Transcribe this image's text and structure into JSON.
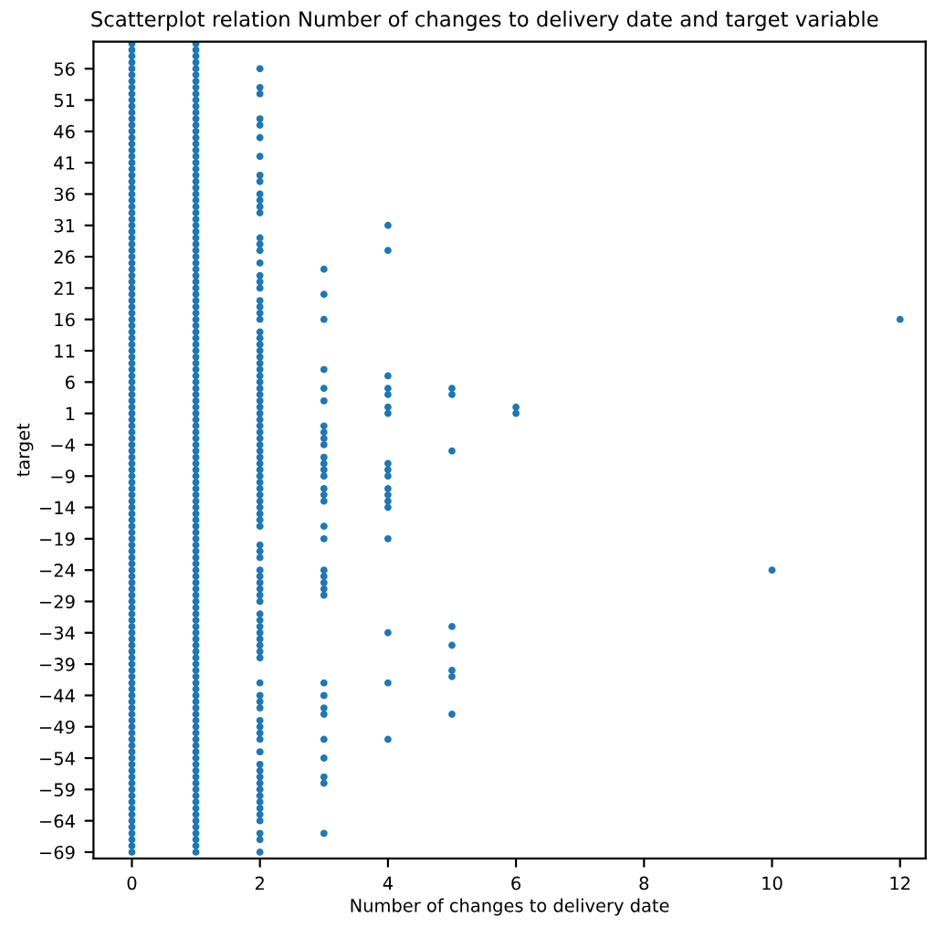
{
  "chart_data": {
    "type": "scatter",
    "title": "Scatterplot relation Number of changes to delivery date and target variable",
    "xlabel": "Number of changes to delivery date",
    "ylabel": "target",
    "xlim": [
      -0.6,
      12.4
    ],
    "ylim": [
      -70,
      60.3
    ],
    "xticks": [
      0,
      2,
      4,
      6,
      8,
      10,
      12
    ],
    "yticks": [
      -69,
      -64,
      -59,
      -54,
      -49,
      -44,
      -39,
      -34,
      -29,
      -24,
      -19,
      -14,
      -9,
      -4,
      1,
      6,
      11,
      16,
      21,
      26,
      31,
      36,
      41,
      46,
      51,
      56
    ],
    "grid": false,
    "legend": false,
    "marker": "circle",
    "series": [
      {
        "color": "#1f77b4",
        "x": [
          0,
          0,
          0,
          0,
          0,
          0,
          0,
          0,
          0,
          0,
          0,
          0,
          0,
          0,
          0,
          0,
          0,
          0,
          0,
          0,
          0,
          0,
          0,
          0,
          0,
          0,
          0,
          0,
          0,
          0,
          0,
          0,
          0,
          0,
          0,
          0,
          0,
          0,
          0,
          0,
          0,
          0,
          0,
          0,
          0,
          0,
          0,
          0,
          0,
          0,
          0,
          0,
          0,
          0,
          0,
          0,
          0,
          0,
          0,
          0,
          0,
          0,
          0,
          0,
          0,
          0,
          0,
          0,
          0,
          0,
          0,
          0,
          0,
          0,
          0,
          0,
          0,
          0,
          0,
          0,
          0,
          0,
          0,
          0,
          0,
          0,
          0,
          0,
          0,
          0,
          0,
          0,
          0,
          0,
          0,
          0,
          0,
          0,
          0,
          0,
          0,
          0,
          0,
          0,
          0,
          0,
          0,
          0,
          0,
          0,
          0,
          0,
          0,
          0,
          0,
          0,
          0,
          0,
          0,
          0,
          0,
          0,
          0,
          0,
          0,
          0,
          0,
          0,
          0,
          0
        ],
        "values": [
          -69,
          -68,
          -67,
          -66,
          -65,
          -64,
          -63,
          -62,
          -61,
          -60,
          -59,
          -58,
          -57,
          -56,
          -55,
          -54,
          -53,
          -52,
          -51,
          -50,
          -49,
          -48,
          -47,
          -46,
          -45,
          -44,
          -43,
          -42,
          -41,
          -40,
          -39,
          -38,
          -37,
          -36,
          -35,
          -34,
          -33,
          -32,
          -31,
          -30,
          -29,
          -28,
          -27,
          -26,
          -25,
          -24,
          -23,
          -22,
          -21,
          -20,
          -19,
          -18,
          -17,
          -16,
          -15,
          -14,
          -13,
          -12,
          -11,
          -10,
          -9,
          -8,
          -7,
          -6,
          -5,
          -4,
          -3,
          -2,
          -1,
          0,
          1,
          2,
          3,
          4,
          5,
          6,
          7,
          8,
          9,
          10,
          11,
          12,
          13,
          14,
          15,
          16,
          17,
          18,
          19,
          20,
          21,
          22,
          23,
          24,
          25,
          26,
          27,
          28,
          29,
          30,
          31,
          32,
          33,
          34,
          35,
          36,
          37,
          38,
          39,
          40,
          41,
          42,
          43,
          44,
          45,
          46,
          47,
          48,
          49,
          50,
          51,
          52,
          53,
          54,
          55,
          56,
          57,
          58,
          59,
          60
        ]
      },
      {
        "color": "#1f77b4",
        "x": [
          1,
          1,
          1,
          1,
          1,
          1,
          1,
          1,
          1,
          1,
          1,
          1,
          1,
          1,
          1,
          1,
          1,
          1,
          1,
          1,
          1,
          1,
          1,
          1,
          1,
          1,
          1,
          1,
          1,
          1,
          1,
          1,
          1,
          1,
          1,
          1,
          1,
          1,
          1,
          1,
          1,
          1,
          1,
          1,
          1,
          1,
          1,
          1,
          1,
          1,
          1,
          1,
          1,
          1,
          1,
          1,
          1,
          1,
          1,
          1,
          1,
          1,
          1,
          1,
          1,
          1,
          1,
          1,
          1,
          1,
          1,
          1,
          1,
          1,
          1,
          1,
          1,
          1,
          1,
          1,
          1,
          1,
          1,
          1,
          1,
          1,
          1,
          1,
          1,
          1,
          1,
          1,
          1,
          1,
          1,
          1,
          1,
          1,
          1,
          1,
          1,
          1,
          1,
          1,
          1,
          1,
          1,
          1,
          1,
          1,
          1,
          1,
          1,
          1,
          1,
          1,
          1,
          1,
          1,
          1,
          1,
          1,
          1,
          1,
          1,
          1,
          1,
          1,
          1,
          1
        ],
        "values": [
          -69,
          -68,
          -67,
          -66,
          -65,
          -64,
          -63,
          -62,
          -61,
          -60,
          -59,
          -58,
          -57,
          -56,
          -55,
          -54,
          -53,
          -52,
          -51,
          -50,
          -49,
          -48,
          -47,
          -46,
          -45,
          -44,
          -43,
          -42,
          -41,
          -40,
          -39,
          -38,
          -37,
          -36,
          -35,
          -34,
          -33,
          -32,
          -31,
          -30,
          -29,
          -28,
          -27,
          -26,
          -25,
          -24,
          -23,
          -22,
          -21,
          -20,
          -19,
          -18,
          -17,
          -16,
          -15,
          -14,
          -13,
          -12,
          -11,
          -10,
          -9,
          -8,
          -7,
          -6,
          -5,
          -4,
          -3,
          -2,
          -1,
          0,
          1,
          2,
          3,
          4,
          5,
          6,
          7,
          8,
          9,
          10,
          11,
          12,
          13,
          14,
          15,
          16,
          17,
          18,
          19,
          20,
          21,
          22,
          23,
          24,
          25,
          26,
          27,
          28,
          29,
          30,
          31,
          32,
          33,
          34,
          35,
          36,
          37,
          38,
          39,
          40,
          41,
          42,
          43,
          44,
          45,
          46,
          47,
          48,
          49,
          50,
          51,
          52,
          53,
          54,
          55,
          56,
          57,
          58,
          59,
          60
        ]
      },
      {
        "color": "#1f77b4",
        "x": [
          2,
          2,
          2,
          2,
          2,
          2,
          2,
          2,
          2,
          2,
          2,
          2,
          2,
          2,
          2,
          2,
          2,
          2,
          2,
          2,
          2,
          2,
          2,
          2,
          2,
          2,
          2,
          2,
          2,
          2,
          2,
          2,
          2,
          2,
          2,
          2,
          2,
          2,
          2,
          2,
          2,
          2,
          2,
          2,
          2,
          2,
          2,
          2,
          2,
          2,
          2,
          2,
          2,
          2,
          2,
          2,
          2,
          2,
          2,
          2,
          2,
          2,
          2,
          2,
          2,
          2,
          2,
          2,
          2,
          2,
          2,
          2,
          2,
          2,
          2,
          2,
          2,
          2,
          2,
          2,
          2,
          2,
          2,
          2,
          2,
          2,
          2,
          2,
          2,
          2,
          2,
          2,
          2,
          2,
          2
        ],
        "values": [
          56,
          53,
          52,
          48,
          47,
          45,
          42,
          39,
          38,
          36,
          35,
          34,
          33,
          29,
          28,
          27,
          25,
          23,
          22,
          21,
          19,
          18,
          17,
          16,
          14,
          13,
          12,
          11,
          10,
          9,
          8,
          7,
          6,
          5,
          4,
          3,
          2,
          1,
          0,
          -1,
          -2,
          -3,
          -4,
          -5,
          -6,
          -7,
          -8,
          -9,
          -10,
          -11,
          -12,
          -13,
          -14,
          -15,
          -16,
          -17,
          -20,
          -21,
          -22,
          -24,
          -25,
          -26,
          -27,
          -28,
          -29,
          -31,
          -32,
          -33,
          -34,
          -35,
          -36,
          -37,
          -38,
          -42,
          -44,
          -45,
          -46,
          -48,
          -49,
          -50,
          -51,
          -53,
          -55,
          -56,
          -57,
          -58,
          -59,
          -60,
          -61,
          -62,
          -63,
          -64,
          -66,
          -67,
          -69
        ]
      },
      {
        "color": "#1f77b4",
        "x": [
          3,
          3,
          3,
          3,
          3,
          3,
          3,
          3,
          3,
          3,
          3,
          3,
          3,
          3,
          3,
          3,
          3,
          3,
          3,
          3,
          3,
          3,
          3,
          3,
          3,
          3,
          3,
          3,
          3,
          3,
          3,
          3,
          3
        ],
        "values": [
          24,
          20,
          16,
          8,
          5,
          3,
          -1,
          -2,
          -3,
          -4,
          -6,
          -7,
          -8,
          -9,
          -11,
          -12,
          -13,
          -17,
          -19,
          -24,
          -25,
          -26,
          -27,
          -28,
          -42,
          -44,
          -46,
          -47,
          -51,
          -54,
          -57,
          -58,
          -66
        ]
      },
      {
        "color": "#1f77b4",
        "x": [
          4,
          4,
          4,
          4,
          4,
          4,
          4,
          4,
          4,
          4,
          4,
          4,
          4,
          4,
          4,
          4,
          4,
          4
        ],
        "values": [
          31,
          27,
          7,
          5,
          4,
          2,
          1,
          -7,
          -8,
          -9,
          -11,
          -12,
          -13,
          -14,
          -19,
          -34,
          -42,
          -51
        ]
      },
      {
        "color": "#1f77b4",
        "x": [
          5,
          5,
          5,
          5,
          5,
          5,
          5,
          5,
          6,
          6,
          10,
          12
        ],
        "values": [
          5,
          4,
          -5,
          -33,
          -36,
          -40,
          -41,
          -47,
          2,
          1,
          -24,
          16
        ]
      }
    ]
  }
}
